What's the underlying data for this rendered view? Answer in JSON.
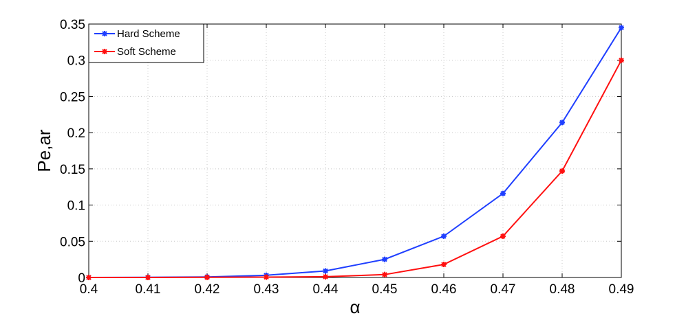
{
  "chart_data": {
    "type": "line",
    "title": "",
    "xlabel": "α",
    "ylabel": "Pe,ar",
    "x": [
      0.4,
      0.41,
      0.42,
      0.43,
      0.44,
      0.45,
      0.46,
      0.47,
      0.48,
      0.49
    ],
    "xlim": [
      0.4,
      0.49
    ],
    "ylim": [
      0,
      0.35
    ],
    "xticks": [
      "0.4",
      "0.41",
      "0.42",
      "0.43",
      "0.44",
      "0.45",
      "0.46",
      "0.47",
      "0.48",
      "0.49"
    ],
    "yticks": [
      "0",
      "0.05",
      "0.1",
      "0.15",
      "0.2",
      "0.25",
      "0.3",
      "0.35"
    ],
    "grid": true,
    "legend_position": "top-left",
    "series": [
      {
        "name": "Hard Scheme",
        "color": "#1f3fff",
        "marker": "asterisk",
        "values": [
          0.0,
          0.0002,
          0.0008,
          0.003,
          0.009,
          0.025,
          0.057,
          0.116,
          0.214,
          0.345
        ]
      },
      {
        "name": "Soft Scheme",
        "color": "#ff1010",
        "marker": "asterisk",
        "values": [
          0.0,
          0.0,
          0.0002,
          0.0005,
          0.001,
          0.004,
          0.018,
          0.057,
          0.147,
          0.3
        ]
      }
    ]
  }
}
